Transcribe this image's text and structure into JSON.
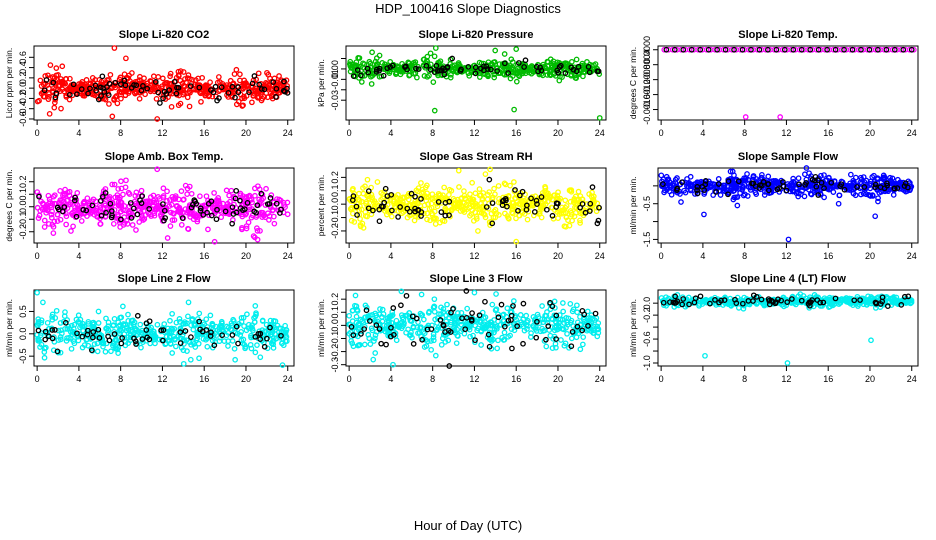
{
  "main_title": "HDP_100416  Slope Diagnostics",
  "xlabel": "Hour of Day (UTC)",
  "chart_data": [
    {
      "type": "scatter",
      "title": "Slope Li-820 CO2",
      "ylabel": "Licor ppm per min.",
      "color": "#ff0000",
      "xlim": [
        -0.3,
        24.6
      ],
      "ylim": [
        -0.62,
        0.82
      ],
      "yticks": [
        -0.6,
        -0.4,
        -0.2,
        0.0,
        0.2,
        0.4,
        0.6
      ],
      "yticklabels": [
        "-0.6",
        "-0.4",
        "-0.2",
        "0.0",
        "0.2",
        "0.4",
        "0.6"
      ],
      "xticks": [
        0,
        4,
        8,
        12,
        16,
        20,
        24
      ],
      "xticklabels": [
        "0",
        "4",
        "8",
        "12",
        "16",
        "20",
        "24"
      ],
      "center": 0.0,
      "sd": 0.17,
      "n": 520,
      "n_black": 70,
      "black_sd": 0.11,
      "outliers": [
        [
          7.4,
          0.78
        ],
        [
          8.5,
          0.58
        ],
        [
          7.2,
          -0.55
        ],
        [
          11.5,
          -0.6
        ],
        [
          1.2,
          -0.5
        ]
      ]
    },
    {
      "type": "scatter",
      "title": "Slope Li-820 Pressure",
      "ylabel": "kPa per min.",
      "color": "#00bb00",
      "xlim": [
        -0.3,
        24.6
      ],
      "ylim": [
        -0.049,
        0.022
      ],
      "yticks": [
        -0.03,
        -0.02,
        -0.01,
        0.0,
        0.01
      ],
      "yticklabels": [
        "-0.03",
        "",
        "-0.01",
        "0.00",
        ""
      ],
      "xticks": [
        0,
        4,
        8,
        12,
        16,
        20,
        24
      ],
      "xticklabels": [
        "0",
        "4",
        "8",
        "12",
        "16",
        "20",
        "24"
      ],
      "center": 0.0,
      "sd": 0.0055,
      "n": 480,
      "n_black": 65,
      "black_sd": 0.003,
      "outliers": [
        [
          8.2,
          -0.04
        ],
        [
          15.8,
          -0.039
        ],
        [
          24.0,
          -0.047
        ],
        [
          8.3,
          0.02
        ],
        [
          16.0,
          0.019
        ],
        [
          2.2,
          0.016
        ],
        [
          7.8,
          0.015
        ]
      ]
    },
    {
      "type": "scatter",
      "title": "Slope Li-820 Temp.",
      "ylabel": "degrees C per min.",
      "color": "#ff00ff",
      "xlim": [
        -0.3,
        24.6
      ],
      "ylim": [
        -0.00188,
        0.0001
      ],
      "yticks": [
        -0.0016,
        -0.0012,
        -0.0008,
        -0.0004,
        0.0
      ],
      "yticklabels": [
        "-0.0016",
        "-0.0012",
        "-0.0008",
        "-0.0004",
        "0.0000"
      ],
      "xticks": [
        0,
        4,
        8,
        12,
        16,
        20,
        24
      ],
      "xticklabels": [
        "0",
        "4",
        "8",
        "12",
        "16",
        "20",
        "24"
      ],
      "center": 0.0,
      "sd": 0.0,
      "n": 60,
      "n_black": 30,
      "black_sd": 0.0,
      "outliers": [
        [
          8.1,
          -0.0018
        ],
        [
          11.4,
          -0.0018
        ]
      ],
      "flat": true
    },
    {
      "type": "scatter",
      "title": "Slope Amb. Box Temp.",
      "ylabel": "degrees C per min.",
      "color": "#ff00ff",
      "xlim": [
        -0.3,
        24.6
      ],
      "ylim": [
        -0.29,
        0.31
      ],
      "yticks": [
        -0.2,
        -0.1,
        0.0,
        0.1,
        0.2
      ],
      "yticklabels": [
        "-0.2",
        "-0.1",
        "0.0",
        "0.1",
        "0.2"
      ],
      "xticks": [
        0,
        4,
        8,
        12,
        16,
        20,
        24
      ],
      "xticklabels": [
        "0",
        "4",
        "8",
        "12",
        "16",
        "20",
        "24"
      ],
      "center": 0.0,
      "sd": 0.095,
      "n": 520,
      "n_black": 70,
      "black_sd": 0.07,
      "outliers": [
        [
          11.5,
          0.3
        ],
        [
          17.0,
          -0.28
        ],
        [
          12.5,
          -0.25
        ]
      ]
    },
    {
      "type": "scatter",
      "title": "Slope Gas Stream RH",
      "ylabel": "percent per min.",
      "color": "#ffff00",
      "xlim": [
        -0.3,
        24.6
      ],
      "ylim": [
        -0.29,
        0.27
      ],
      "yticks": [
        -0.2,
        -0.1,
        0.0,
        0.1,
        0.2
      ],
      "yticklabels": [
        "-0.2",
        "-0.1",
        "0.0",
        "0.1",
        "0.2"
      ],
      "xticks": [
        0,
        4,
        8,
        12,
        16,
        20,
        24
      ],
      "xticklabels": [
        "0",
        "4",
        "8",
        "12",
        "16",
        "20",
        "24"
      ],
      "center": 0.0,
      "sd": 0.09,
      "n": 520,
      "n_black": 70,
      "black_sd": 0.08,
      "outliers": [
        [
          16.0,
          -0.28
        ],
        [
          13.5,
          0.26
        ],
        [
          10.5,
          0.25
        ]
      ]
    },
    {
      "type": "scatter",
      "title": "Slope Sample Flow",
      "ylabel": "ml/min per min.",
      "color": "#0000ff",
      "xlim": [
        -0.3,
        24.6
      ],
      "ylim": [
        -1.6,
        0.5
      ],
      "yticks": [
        -1.5,
        -1.0,
        -0.5,
        0.0
      ],
      "yticklabels": [
        "-1.5",
        "",
        "-0.5",
        ""
      ],
      "xticks": [
        0,
        4,
        8,
        12,
        16,
        20,
        24
      ],
      "xticklabels": [
        "0",
        "4",
        "8",
        "12",
        "16",
        "20",
        "24"
      ],
      "center": 0.0,
      "sd": 0.18,
      "n": 520,
      "n_black": 60,
      "black_sd": 0.1,
      "outliers": [
        [
          12.2,
          -1.5
        ],
        [
          4.1,
          -0.8
        ],
        [
          20.5,
          -0.85
        ],
        [
          7.3,
          -0.55
        ],
        [
          17.0,
          -0.5
        ]
      ]
    },
    {
      "type": "scatter",
      "title": "Slope Line 2 Flow",
      "ylabel": "ml/min per min.",
      "color": "#00eeee",
      "xlim": [
        -0.3,
        24.6
      ],
      "ylim": [
        -0.72,
        0.98
      ],
      "yticks": [
        -0.5,
        0.0,
        0.5
      ],
      "yticklabels": [
        "-0.5",
        "0.0",
        "0.5"
      ],
      "xticks": [
        0,
        4,
        8,
        12,
        16,
        20,
        24
      ],
      "xticklabels": [
        "0",
        "4",
        "8",
        "12",
        "16",
        "20",
        "24"
      ],
      "center": 0.0,
      "sd": 0.28,
      "n": 500,
      "n_black": 60,
      "black_sd": 0.13,
      "outliers": [
        [
          0.0,
          0.92
        ],
        [
          23.5,
          -0.7
        ]
      ]
    },
    {
      "type": "scatter",
      "title": "Slope Line 3 Flow",
      "ylabel": "ml/min per min.",
      "color": "#00eeee",
      "xlim": [
        -0.3,
        24.6
      ],
      "ylim": [
        -0.31,
        0.27
      ],
      "yticks": [
        -0.3,
        -0.2,
        -0.1,
        0.0,
        0.1,
        0.2
      ],
      "yticklabels": [
        "-0.3",
        "-0.2",
        "-0.1",
        "0.0",
        "0.1",
        "0.2"
      ],
      "xticks": [
        0,
        4,
        8,
        12,
        16,
        20,
        24
      ],
      "xticklabels": [
        "0",
        "4",
        "8",
        "12",
        "16",
        "20",
        "24"
      ],
      "center": 0.0,
      "sd": 0.095,
      "n": 500,
      "n_black": 70,
      "black_sd": 0.095,
      "outliers": [
        [
          4.2,
          -0.3
        ],
        [
          5.0,
          0.26
        ],
        [
          12.0,
          0.25
        ]
      ]
    },
    {
      "type": "scatter",
      "title": "Slope Line 4 (LT) Flow",
      "ylabel": "ml/min per min.",
      "color": "#00eeee",
      "xlim": [
        -0.3,
        24.6
      ],
      "ylim": [
        -1.05,
        0.22
      ],
      "yticks": [
        -1.0,
        -0.8,
        -0.6,
        -0.4,
        -0.2,
        0.0
      ],
      "yticklabels": [
        "-1.0",
        "",
        "-0.6",
        "",
        "-0.2",
        "0.0"
      ],
      "xticks": [
        0,
        4,
        8,
        12,
        16,
        20,
        24
      ],
      "xticklabels": [
        "0",
        "4",
        "8",
        "12",
        "16",
        "20",
        "24"
      ],
      "center": 0.03,
      "sd": 0.05,
      "n": 500,
      "n_black": 60,
      "black_sd": 0.04,
      "outliers": [
        [
          4.2,
          -0.88
        ],
        [
          12.1,
          -1.0
        ],
        [
          20.1,
          -0.62
        ]
      ]
    }
  ]
}
